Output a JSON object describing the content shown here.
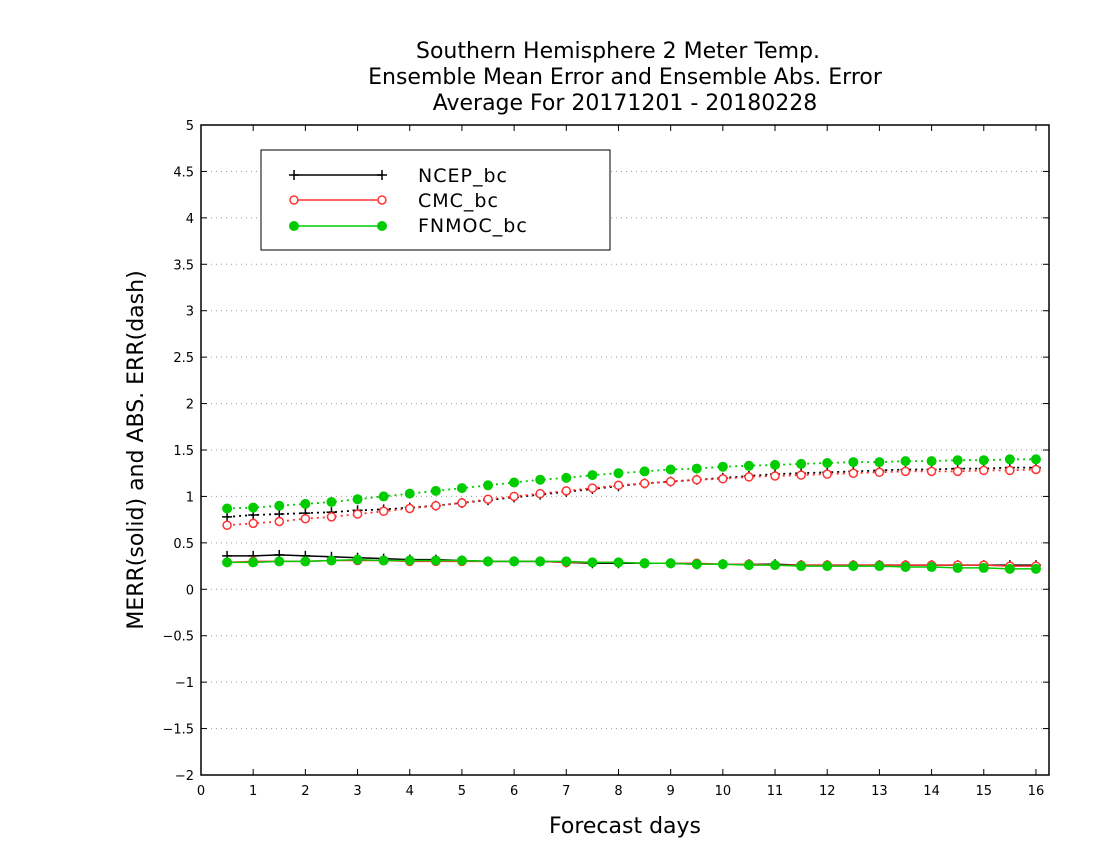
{
  "chart_data": {
    "type": "line",
    "title": [
      "Southern Hemisphere 2 Meter Temp.",
      "Ensemble Mean Error and Ensemble Abs. Error",
      "Average For 20171201 - 20180228"
    ],
    "xlabel": "Forecast days",
    "ylabel": "MERR(solid) and ABS. ERR(dash)",
    "xlim": [
      0,
      16.25
    ],
    "ylim": [
      -2,
      5
    ],
    "xticks": [
      0,
      1,
      2,
      3,
      4,
      5,
      6,
      7,
      8,
      9,
      10,
      11,
      12,
      13,
      14,
      15,
      16
    ],
    "xtick_labels": [
      "0",
      "1",
      "2",
      "3",
      "4",
      "5",
      "6",
      "7",
      "8",
      "9",
      "10",
      "11",
      "12",
      "13",
      "14",
      "15",
      "16"
    ],
    "yticks": [
      -2,
      -1.5,
      -1,
      -0.5,
      0,
      0.5,
      1,
      1.5,
      2,
      2.5,
      3,
      3.5,
      4,
      4.5,
      5
    ],
    "ytick_labels": [
      "−2",
      "−1.5",
      "−1",
      "−0.5",
      "0",
      "0.5",
      "1",
      "1.5",
      "2",
      "2.5",
      "3",
      "3.5",
      "4",
      "4.5",
      "5"
    ],
    "grid": "horizontal dotted",
    "legend_position": "top-left",
    "x": [
      0.5,
      1.0,
      1.5,
      2.0,
      2.5,
      3.0,
      3.5,
      4.0,
      4.5,
      5.0,
      5.5,
      6.0,
      6.5,
      7.0,
      7.5,
      8.0,
      8.5,
      9.0,
      9.5,
      10.0,
      10.5,
      11.0,
      11.5,
      12.0,
      12.5,
      13.0,
      13.5,
      14.0,
      14.5,
      15.0,
      15.5,
      16.0
    ],
    "series": [
      {
        "name": "NCEP_bc",
        "color": "#000000",
        "marker": "plus",
        "merr": [
          0.36,
          0.36,
          0.37,
          0.36,
          0.35,
          0.34,
          0.33,
          0.32,
          0.32,
          0.31,
          0.3,
          0.3,
          0.3,
          0.29,
          0.28,
          0.28,
          0.28,
          0.28,
          0.27,
          0.27,
          0.27,
          0.27,
          0.26,
          0.26,
          0.26,
          0.26,
          0.26,
          0.26,
          0.26,
          0.26,
          0.26,
          0.26
        ],
        "abs_err": [
          0.78,
          0.8,
          0.81,
          0.82,
          0.83,
          0.85,
          0.86,
          0.88,
          0.9,
          0.93,
          0.96,
          0.99,
          1.02,
          1.05,
          1.08,
          1.11,
          1.14,
          1.16,
          1.18,
          1.2,
          1.22,
          1.24,
          1.25,
          1.26,
          1.27,
          1.28,
          1.29,
          1.29,
          1.3,
          1.3,
          1.31,
          1.31
        ]
      },
      {
        "name": "CMC_bc",
        "color": "#ff3333",
        "marker": "open-circle",
        "merr": [
          0.29,
          0.3,
          0.3,
          0.3,
          0.31,
          0.31,
          0.31,
          0.3,
          0.3,
          0.3,
          0.3,
          0.3,
          0.3,
          0.29,
          0.29,
          0.29,
          0.28,
          0.28,
          0.28,
          0.27,
          0.27,
          0.26,
          0.26,
          0.26,
          0.26,
          0.26,
          0.26,
          0.26,
          0.26,
          0.26,
          0.25,
          0.25
        ],
        "abs_err": [
          0.69,
          0.71,
          0.73,
          0.76,
          0.78,
          0.81,
          0.84,
          0.87,
          0.9,
          0.93,
          0.97,
          1.0,
          1.03,
          1.06,
          1.09,
          1.12,
          1.14,
          1.16,
          1.18,
          1.19,
          1.21,
          1.22,
          1.23,
          1.24,
          1.25,
          1.26,
          1.27,
          1.27,
          1.27,
          1.28,
          1.28,
          1.29
        ]
      },
      {
        "name": "FNMOC_bc",
        "color": "#00cc00",
        "marker": "filled-circle",
        "merr": [
          0.29,
          0.29,
          0.3,
          0.3,
          0.31,
          0.32,
          0.31,
          0.31,
          0.31,
          0.31,
          0.3,
          0.3,
          0.3,
          0.3,
          0.29,
          0.29,
          0.28,
          0.28,
          0.27,
          0.27,
          0.26,
          0.26,
          0.25,
          0.25,
          0.25,
          0.25,
          0.24,
          0.24,
          0.23,
          0.23,
          0.22,
          0.22
        ],
        "abs_err": [
          0.87,
          0.88,
          0.9,
          0.92,
          0.94,
          0.97,
          1.0,
          1.03,
          1.06,
          1.09,
          1.12,
          1.15,
          1.18,
          1.2,
          1.23,
          1.25,
          1.27,
          1.29,
          1.3,
          1.32,
          1.33,
          1.34,
          1.35,
          1.36,
          1.37,
          1.37,
          1.38,
          1.38,
          1.39,
          1.39,
          1.4,
          1.4
        ]
      }
    ]
  }
}
